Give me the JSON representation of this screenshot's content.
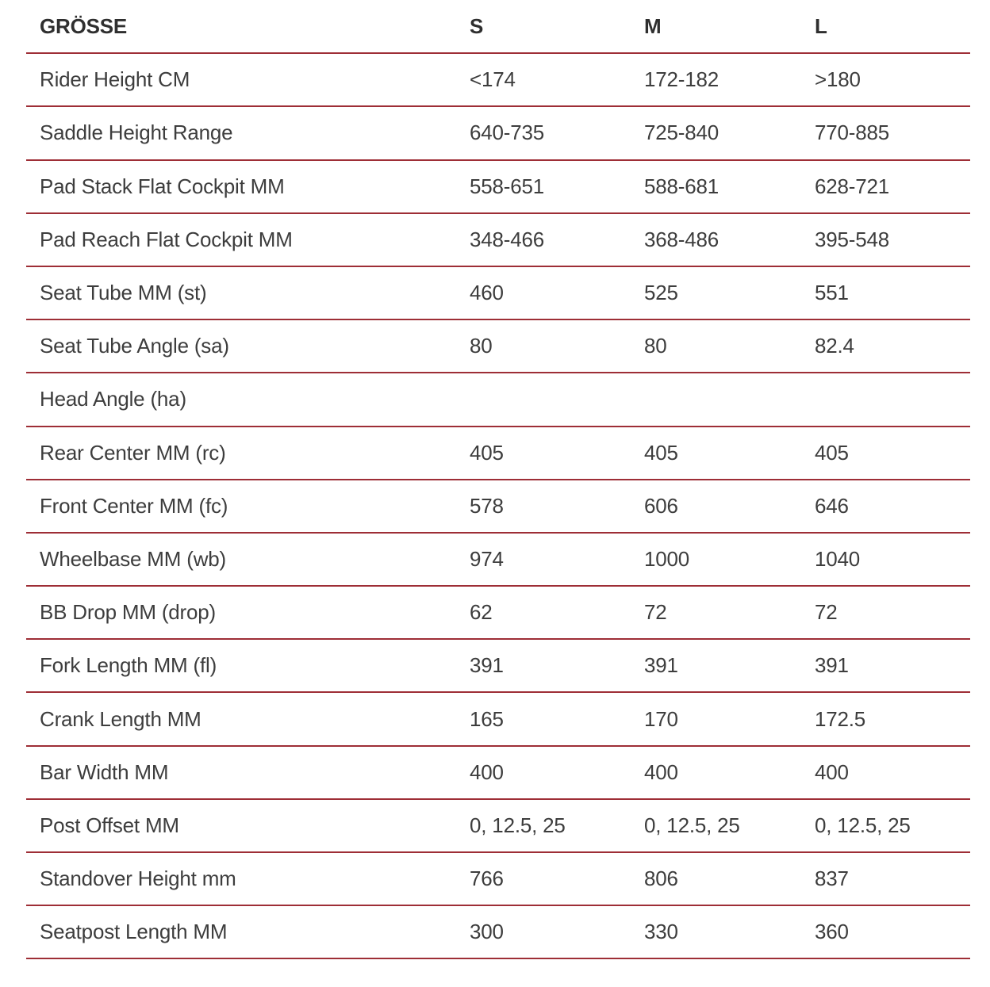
{
  "chart_data": {
    "type": "table",
    "title": "GRÖSSE size and geometry table",
    "columns": [
      "GRÖSSE",
      "S",
      "M",
      "L"
    ],
    "rows": [
      [
        "Rider Height CM",
        "<174",
        "172-182",
        ">180"
      ],
      [
        "Saddle Height Range",
        "640-735",
        "725-840",
        "770-885"
      ],
      [
        "Pad Stack Flat Cockpit MM",
        "558-651",
        "588-681",
        "628-721"
      ],
      [
        "Pad Reach Flat Cockpit MM",
        "348-466",
        "368-486",
        "395-548"
      ],
      [
        "Seat Tube MM (st)",
        "460",
        "525",
        "551"
      ],
      [
        "Seat Tube Angle (sa)",
        "80",
        "80",
        "82.4"
      ],
      [
        "Head Angle (ha)",
        "",
        "",
        ""
      ],
      [
        "Rear Center MM (rc)",
        "405",
        "405",
        "405"
      ],
      [
        "Front Center MM (fc)",
        "578",
        "606",
        "646"
      ],
      [
        "Wheelbase MM (wb)",
        "974",
        "1000",
        "1040"
      ],
      [
        "BB Drop MM (drop)",
        "62",
        "72",
        "72"
      ],
      [
        "Fork Length MM (fl)",
        "391",
        "391",
        "391"
      ],
      [
        "Crank Length MM",
        "165",
        "170",
        "172.5"
      ],
      [
        "Bar Width MM",
        "400",
        "400",
        "400"
      ],
      [
        "Post Offset MM",
        "0, 12.5, 25",
        "0, 12.5, 25",
        "0, 12.5, 25"
      ],
      [
        "Standover Height mm",
        "766",
        "806",
        "837"
      ],
      [
        "Seatpost Length MM",
        "300",
        "330",
        "360"
      ]
    ],
    "layout": {
      "grid": "horizontal red dividers only",
      "legend": "none"
    }
  },
  "colors": {
    "divider": "#9e2e36",
    "text": "#3d3d3d",
    "header_text": "#2f2f2f",
    "background": "#ffffff"
  }
}
